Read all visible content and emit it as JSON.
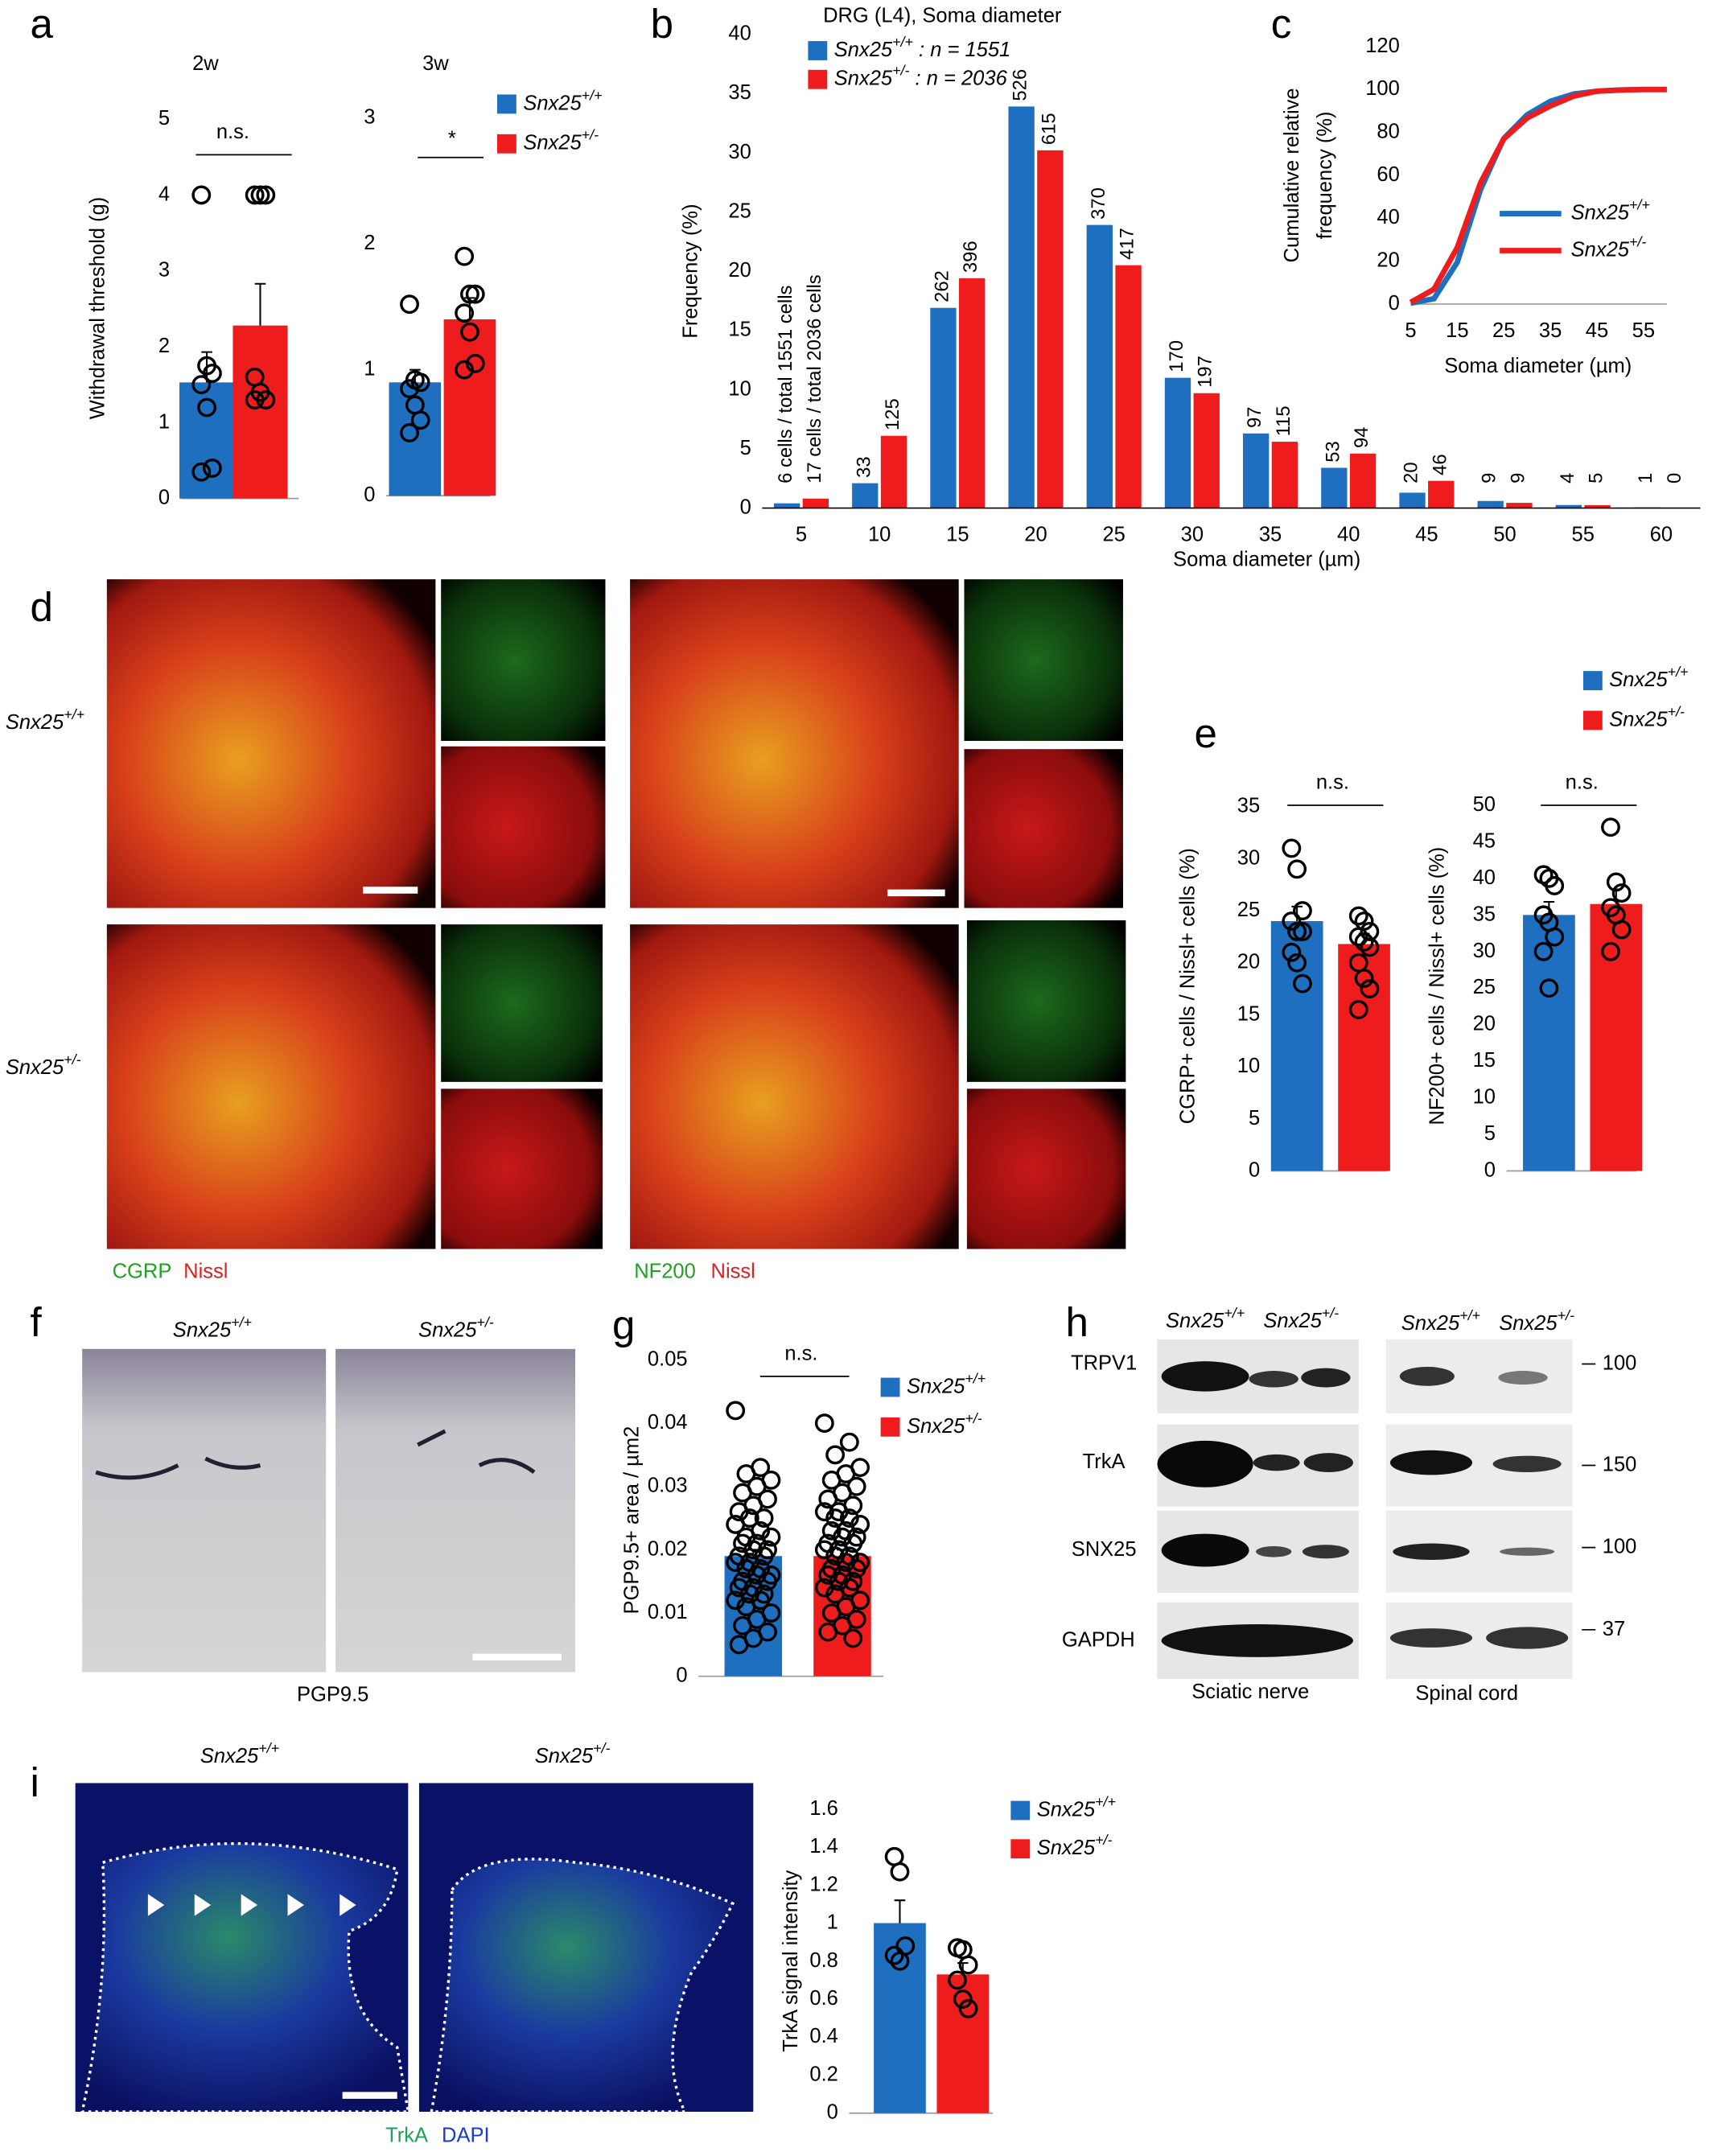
{
  "chart_data": [
    {
      "type": "bar",
      "title": "2w",
      "ylabel": "Withdrawal threshold (g)",
      "ylim": [
        0,
        5
      ],
      "yticks": [
        0,
        1,
        2,
        3,
        4,
        5
      ],
      "annotation": "n.s.",
      "series": [
        {
          "color": "#1f6fc0",
          "values": [
            1.53
          ],
          "errors": [
            0.4
          ],
          "points": [
            4,
            1.75,
            1.65,
            1.5,
            1.2,
            0.4,
            0.35
          ]
        },
        {
          "color": "#ee1c1c",
          "values": [
            2.28
          ],
          "errors": [
            0.55
          ],
          "points": [
            4,
            4,
            4,
            1.6,
            1.4,
            1.3,
            1.3
          ]
        }
      ]
    },
    {
      "type": "bar",
      "title": "3w",
      "ylim": [
        0,
        3
      ],
      "yticks": [
        0,
        1,
        2,
        3
      ],
      "annotation": "*",
      "series": [
        {
          "name": "Snx25+/+",
          "color": "#1f6fc0",
          "values": [
            0.9
          ],
          "errors": [
            0.1
          ],
          "points": [
            1.52,
            0.92,
            0.9,
            0.85,
            0.72,
            0.6,
            0.5
          ]
        },
        {
          "name": "Snx25+/-",
          "color": "#ee1c1c",
          "values": [
            1.4
          ],
          "errors": [
            0.17
          ],
          "points": [
            1.9,
            1.6,
            1.6,
            1.45,
            1.3,
            1.05,
            1.0
          ]
        }
      ]
    },
    {
      "type": "bar",
      "title": "DRG (L4), Soma diameter",
      "xlabel": "Soma diameter (µm)",
      "ylabel": "Frequency (%)",
      "categories": [
        "5",
        "10",
        "15",
        "20",
        "25",
        "30",
        "35",
        "40",
        "45",
        "50",
        "55",
        "60"
      ],
      "ylim": [
        0,
        40
      ],
      "yticks": [
        0,
        5,
        10,
        15,
        20,
        25,
        30,
        35,
        40
      ],
      "series": [
        {
          "name": "Snx25+/+ : n = 1551",
          "color": "#1f6fc0",
          "values": [
            0.4,
            2.1,
            16.9,
            33.9,
            23.9,
            11.0,
            6.3,
            3.4,
            1.3,
            0.6,
            0.26,
            0.06
          ],
          "cell_counts": [
            "6 cells / total 1551 cells",
            "33",
            "262",
            "526",
            "370",
            "170",
            "97",
            "53",
            "20",
            "9",
            "4",
            "1"
          ]
        },
        {
          "name": "Snx25+/- : n = 2036",
          "color": "#ee1c1c",
          "values": [
            0.8,
            6.1,
            19.4,
            30.2,
            20.5,
            9.7,
            5.6,
            4.6,
            2.3,
            0.44,
            0.25,
            0
          ],
          "cell_counts": [
            "17 cells / total 2036 cells",
            "125",
            "396",
            "615",
            "417",
            "197",
            "115",
            "94",
            "46",
            "9",
            "5",
            "0"
          ]
        }
      ]
    },
    {
      "type": "line",
      "xlabel": "Soma diameter (µm)",
      "ylabel": [
        "Cumulative relative",
        "frequency (%)"
      ],
      "x": [
        5,
        10,
        15,
        20,
        25,
        30,
        35,
        40,
        45,
        50,
        55,
        60
      ],
      "xlim": [
        5,
        60
      ],
      "xticks": [
        5,
        15,
        25,
        35,
        45,
        55
      ],
      "ylim": [
        0,
        120
      ],
      "yticks": [
        0,
        20,
        40,
        60,
        80,
        100,
        120
      ],
      "series": [
        {
          "name": "Snx25+/+",
          "color": "#1f6fc0",
          "values": [
            0.4,
            2.5,
            19.4,
            53.3,
            77.2,
            88.2,
            94.5,
            97.9,
            99.2,
            99.8,
            100,
            100
          ]
        },
        {
          "name": "Snx25+/-",
          "color": "#ee1c1c",
          "values": [
            0.8,
            6.9,
            26.3,
            56.5,
            77,
            86.7,
            92.3,
            96.9,
            99.2,
            99.7,
            100,
            100
          ]
        }
      ]
    },
    {
      "type": "bar",
      "ylabel": "CGRP+ cells / Nissl+ cells (%)",
      "ylim": [
        0,
        35
      ],
      "yticks": [
        0,
        5,
        10,
        15,
        20,
        25,
        30,
        35
      ],
      "annotation": "n.s.",
      "series": [
        {
          "name": "Snx25+/+",
          "color": "#1f6fc0",
          "values": [
            24
          ],
          "errors": [
            1.4
          ],
          "points": [
            31,
            29,
            25,
            24,
            23,
            23,
            21,
            20,
            18
          ]
        },
        {
          "name": "Snx25+/-",
          "color": "#ee1c1c",
          "values": [
            21.8
          ],
          "errors": [
            1.0
          ],
          "points": [
            24.5,
            24,
            23,
            22.5,
            22,
            21.5,
            20,
            18.5,
            17.5,
            15.5
          ]
        }
      ]
    },
    {
      "type": "bar",
      "ylabel": "NF200+ cells / Nissl+ cells (%)",
      "ylim": [
        0,
        50
      ],
      "yticks": [
        0,
        5,
        10,
        15,
        20,
        25,
        30,
        35,
        40,
        45,
        50
      ],
      "annotation": "n.s.",
      "series": [
        {
          "color": "#1f6fc0",
          "values": [
            35
          ],
          "errors": [
            1.8
          ],
          "points": [
            40.5,
            40,
            39,
            35,
            34,
            32,
            30,
            25
          ]
        },
        {
          "color": "#ee1c1c",
          "values": [
            36.5
          ],
          "errors": [
            2
          ],
          "points": [
            47,
            39.5,
            38,
            36,
            35,
            33,
            30
          ]
        }
      ]
    },
    {
      "type": "bar",
      "ylabel": "PGP9.5+ area / µm2",
      "ylim": [
        0,
        0.05
      ],
      "yticks": [
        0,
        0.01,
        0.02,
        0.03,
        0.04,
        0.05
      ],
      "annotation": "n.s.",
      "series": [
        {
          "name": "Snx25+/+",
          "color": "#1f6fc0",
          "values": [
            0.019
          ],
          "errors": [
            0.001
          ],
          "points": [
            0.042,
            0.033,
            0.032,
            0.031,
            0.03,
            0.029,
            0.028,
            0.027,
            0.026,
            0.025,
            0.025,
            0.024,
            0.023,
            0.022,
            0.022,
            0.021,
            0.021,
            0.02,
            0.02,
            0.019,
            0.019,
            0.018,
            0.018,
            0.017,
            0.017,
            0.016,
            0.016,
            0.015,
            0.015,
            0.014,
            0.014,
            0.013,
            0.013,
            0.012,
            0.012,
            0.011,
            0.01,
            0.009,
            0.008,
            0.007,
            0.006,
            0.005
          ]
        },
        {
          "name": "Snx25+/-",
          "color": "#ee1c1c",
          "values": [
            0.019
          ],
          "errors": [
            0.001
          ],
          "points": [
            0.04,
            0.037,
            0.035,
            0.033,
            0.032,
            0.031,
            0.03,
            0.029,
            0.028,
            0.027,
            0.026,
            0.026,
            0.025,
            0.025,
            0.024,
            0.023,
            0.023,
            0.022,
            0.022,
            0.021,
            0.021,
            0.02,
            0.02,
            0.019,
            0.019,
            0.018,
            0.018,
            0.017,
            0.017,
            0.016,
            0.016,
            0.015,
            0.015,
            0.014,
            0.014,
            0.013,
            0.012,
            0.011,
            0.01,
            0.009,
            0.008,
            0.007,
            0.006
          ]
        }
      ]
    },
    {
      "type": "bar",
      "ylabel": "TrkA signal  intensity",
      "ylim": [
        0,
        1.6
      ],
      "yticks": [
        0,
        0.2,
        0.4,
        0.6,
        0.8,
        1,
        1.2,
        1.4,
        1.6
      ],
      "series": [
        {
          "name": "Snx25+/+",
          "color": "#1f6fc0",
          "values": [
            1.0
          ],
          "errors": [
            0.12
          ],
          "points": [
            1.35,
            1.27,
            0.88,
            0.83,
            0.8
          ]
        },
        {
          "name": "Snx25+/-",
          "color": "#ee1c1c",
          "values": [
            0.73
          ],
          "errors": [
            0.06
          ],
          "points": [
            0.87,
            0.86,
            0.78,
            0.7,
            0.6,
            0.55
          ]
        }
      ]
    }
  ],
  "panel_letters": [
    "a",
    "b",
    "c",
    "d",
    "e",
    "f",
    "g",
    "h",
    "i"
  ],
  "panel_d": {
    "rows": [
      "Snx25+/+",
      "Snx25+/-"
    ],
    "left_stain": [
      "CGRP",
      "Nissl"
    ],
    "right_stain": [
      "NF200",
      "Nissl"
    ]
  },
  "panel_f": {
    "columns": [
      "Snx25+/+",
      "Snx25+/-"
    ],
    "stain": "PGP9.5"
  },
  "panel_h": {
    "columns": [
      "Snx25+/+",
      "Snx25+/-",
      "Snx25+/+",
      "Snx25+/-"
    ],
    "rows": [
      "TRPV1",
      "TrkA",
      "SNX25",
      "GAPDH"
    ],
    "markers": [
      "100",
      "150",
      "100",
      "37"
    ],
    "tissues": [
      "Sciatic nerve",
      "Spinal cord"
    ]
  },
  "panel_i": {
    "columns": [
      "Snx25+/+",
      "Snx25+/-"
    ],
    "stain": [
      "TrkA",
      "DAPI"
    ]
  }
}
